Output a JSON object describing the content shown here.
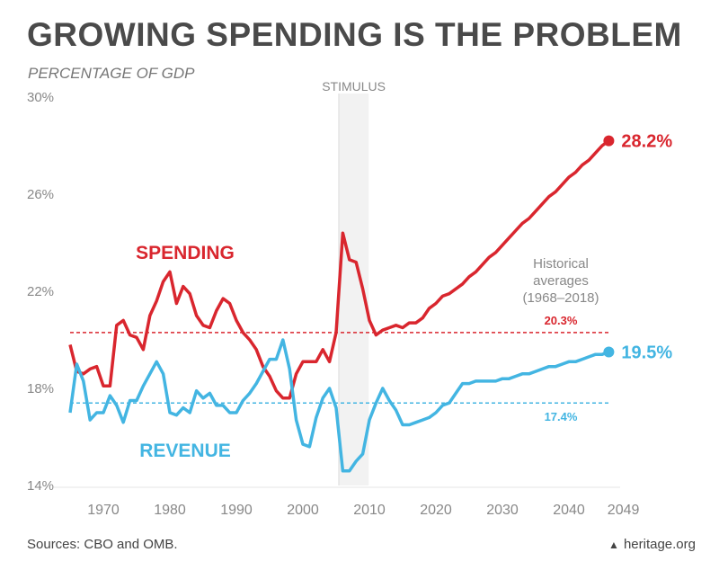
{
  "title": "GROWING SPENDING IS THE PROBLEM",
  "footer": {
    "sources": "Sources: CBO and OMB.",
    "brand": "heritage.org"
  },
  "colors": {
    "spending": "#d9262e",
    "revenue": "#43b5e2",
    "stimulus_band": "#f2f2f2",
    "axis_text": "#888888"
  },
  "chart_data": {
    "type": "line",
    "title": "GROWING SPENDING IS THE PROBLEM",
    "ylabel": "PERCENTAGE OF GDP",
    "xlabel": "",
    "ylim": [
      14,
      30
    ],
    "xlim": [
      1965,
      2049
    ],
    "yticks": [
      {
        "v": 30,
        "label": "30%"
      },
      {
        "v": 26,
        "label": "26%"
      },
      {
        "v": 22,
        "label": "22%"
      },
      {
        "v": 18,
        "label": "18%"
      },
      {
        "v": 14,
        "label": "14%"
      }
    ],
    "xticks": [
      {
        "v": 1970,
        "label": "1970"
      },
      {
        "v": 1980,
        "label": "1980"
      },
      {
        "v": 1990,
        "label": "1990"
      },
      {
        "v": 2000,
        "label": "2000"
      },
      {
        "v": 2010,
        "label": "2010"
      },
      {
        "v": 2020,
        "label": "2020"
      },
      {
        "v": 2030,
        "label": "2030"
      },
      {
        "v": 2040,
        "label": "2040"
      },
      {
        "v": 2049,
        "label": "2049"
      }
    ],
    "x_start": 1965,
    "series": [
      {
        "name": "SPENDING",
        "end_label": "28.2%",
        "values": [
          19.8,
          18.7,
          18.6,
          18.8,
          18.9,
          18.1,
          18.1,
          20.6,
          20.8,
          20.2,
          20.1,
          19.6,
          21.0,
          21.6,
          22.4,
          22.8,
          21.5,
          22.2,
          21.9,
          21.0,
          20.6,
          20.5,
          21.2,
          21.7,
          21.5,
          20.8,
          20.3,
          20.0,
          19.6,
          18.9,
          18.5,
          17.9,
          17.6,
          17.6,
          18.6,
          19.1,
          19.1,
          19.1,
          19.6,
          19.1,
          20.3,
          24.4,
          23.3,
          23.2,
          22.1,
          20.8,
          20.2,
          20.4,
          20.5,
          20.6,
          20.5,
          20.7,
          20.7,
          20.9,
          21.3,
          21.5,
          21.8,
          21.9,
          22.1,
          22.3,
          22.6,
          22.8,
          23.1,
          23.4,
          23.6,
          23.9,
          24.2,
          24.5,
          24.8,
          25.0,
          25.3,
          25.6,
          25.9,
          26.1,
          26.4,
          26.7,
          26.9,
          27.2,
          27.4,
          27.7,
          28.0,
          28.2
        ]
      },
      {
        "name": "REVENUE",
        "end_label": "19.5%",
        "values": [
          17.0,
          19.0,
          18.3,
          16.7,
          17.0,
          17.0,
          17.7,
          17.3,
          16.6,
          17.5,
          17.5,
          18.1,
          18.6,
          19.1,
          18.6,
          17.0,
          16.9,
          17.2,
          17.0,
          17.9,
          17.6,
          17.8,
          17.3,
          17.3,
          17.0,
          17.0,
          17.5,
          17.8,
          18.2,
          18.7,
          19.2,
          19.2,
          20.0,
          18.8,
          16.7,
          15.7,
          15.6,
          16.8,
          17.6,
          18.0,
          17.2,
          14.6,
          14.6,
          15.0,
          15.3,
          16.7,
          17.4,
          18.0,
          17.5,
          17.1,
          16.5,
          16.5,
          16.6,
          16.7,
          16.8,
          17.0,
          17.3,
          17.4,
          17.8,
          18.2,
          18.2,
          18.3,
          18.3,
          18.3,
          18.3,
          18.4,
          18.4,
          18.5,
          18.6,
          18.6,
          18.7,
          18.8,
          18.9,
          18.9,
          19.0,
          19.1,
          19.1,
          19.2,
          19.3,
          19.4,
          19.4,
          19.5
        ]
      }
    ],
    "reference_lines": [
      {
        "name": "spending-average",
        "value": 20.3,
        "label": "20.3%"
      },
      {
        "name": "revenue-average",
        "value": 17.4,
        "label": "17.4%"
      }
    ],
    "annotations": {
      "stimulus": {
        "label": "STIMULUS",
        "from": 2005.4,
        "to": 2009.9
      },
      "historical": [
        "Historical",
        "averages",
        "(1968–2018)"
      ]
    }
  }
}
